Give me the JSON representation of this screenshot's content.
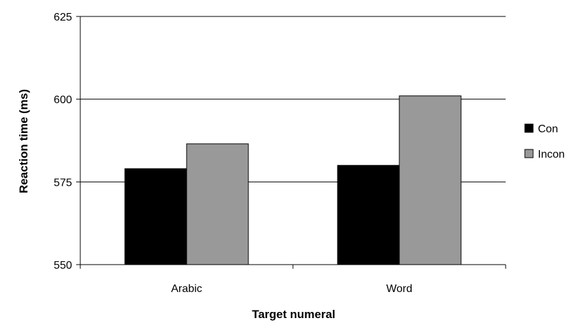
{
  "chart_data": {
    "type": "bar",
    "title": "",
    "xlabel": "Target numeral",
    "ylabel": "Reaction time (ms)",
    "categories": [
      "Arabic",
      "Word"
    ],
    "series": [
      {
        "name": "Con",
        "color": "#000000",
        "values": [
          579,
          580
        ]
      },
      {
        "name": "Incon",
        "color": "#999999",
        "values": [
          586.5,
          601
        ]
      }
    ],
    "ylim": [
      550,
      625
    ],
    "yticks": [
      550,
      575,
      600,
      625
    ],
    "grid": true,
    "legend": "right"
  }
}
